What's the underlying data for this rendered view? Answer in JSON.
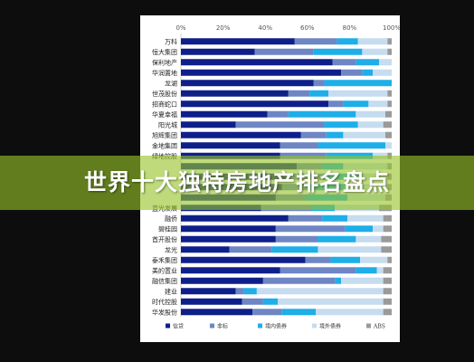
{
  "banner": {
    "title": "世界十大独特房地产排名盘点"
  },
  "chart_data": {
    "type": "bar",
    "orientation": "horizontal",
    "stacked": "percent",
    "xlim": [
      0,
      100
    ],
    "x_ticks": [
      "0%",
      "20%",
      "40%",
      "60%",
      "80%",
      "100%"
    ],
    "grid": false,
    "legend_position": "bottom",
    "categories": [
      "万科",
      "恒大集团",
      "保利地产",
      "华润置地",
      "龙湖",
      "世茂股份",
      "招商蛇口",
      "华夏幸福",
      "阳光城",
      "旭辉集团",
      "金地集团",
      "绿地控股",
      "",
      "",
      "",
      "",
      "蓝光发展",
      "融侨",
      "碧桂园",
      "首开股份",
      "龙光",
      "泰禾集团",
      "美的置业",
      "融信集团",
      "建业",
      "时代控股",
      "华发股份"
    ],
    "series": [
      {
        "name": "信贷",
        "color": "#0f1f8a",
        "values": [
          54,
          35,
          72,
          76,
          63,
          51,
          70,
          41,
          26,
          57,
          47,
          47,
          55,
          50,
          48,
          45,
          38,
          51,
          45,
          45,
          23,
          59,
          47,
          39,
          26,
          29,
          34
        ]
      },
      {
        "name": "非标",
        "color": "#6e86c4",
        "values": [
          20,
          28,
          11,
          10,
          5,
          10,
          7,
          10,
          42,
          12,
          18,
          22,
          12,
          18,
          12,
          14,
          24,
          16,
          33,
          20,
          20,
          12,
          36,
          34,
          4,
          10,
          14
        ]
      },
      {
        "name": "境内债券",
        "color": "#1eaee8",
        "values": [
          10,
          23,
          11,
          5,
          32,
          9,
          12,
          32,
          16,
          8,
          32,
          22,
          10,
          17,
          18,
          20,
          11,
          12,
          13,
          18,
          22,
          14,
          10,
          3,
          6,
          7,
          16
        ]
      },
      {
        "name": "境外债券",
        "color": "#c6dcef",
        "values": [
          14,
          12,
          6,
          9,
          0,
          28,
          9,
          14,
          12,
          20,
          3,
          7,
          21,
          13,
          20,
          18,
          21,
          17,
          5,
          12,
          30,
          13,
          3,
          20,
          60,
          50,
          32
        ]
      },
      {
        "name": "ABS",
        "color": "#9a9a9a",
        "values": [
          2,
          2,
          0,
          0,
          0,
          2,
          2,
          3,
          4,
          3,
          0,
          2,
          2,
          2,
          2,
          3,
          6,
          4,
          4,
          5,
          5,
          2,
          4,
          4,
          4,
          4,
          4
        ]
      }
    ]
  }
}
